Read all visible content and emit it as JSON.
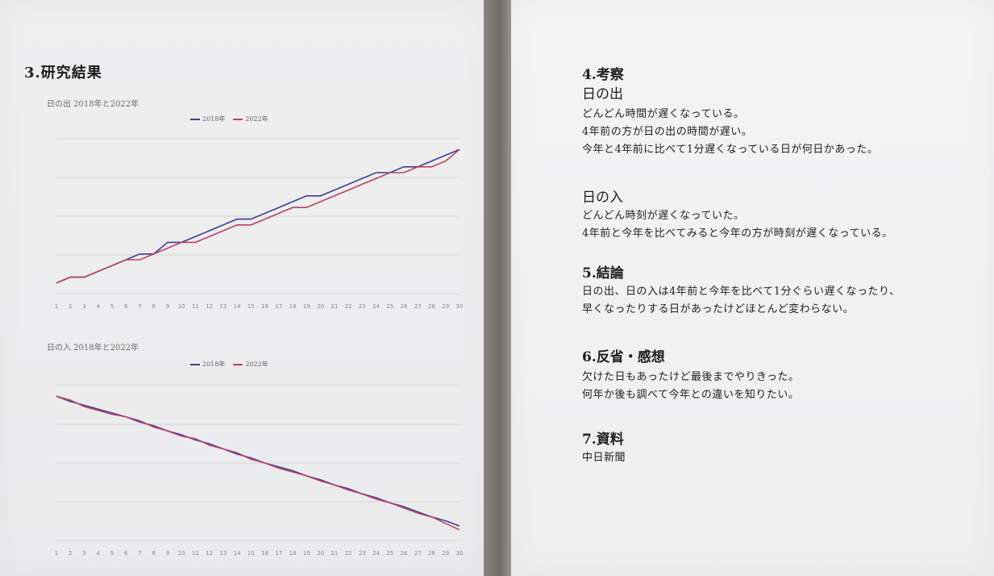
{
  "left": {
    "heading": "3.研究結果",
    "chart1": {
      "title": "日の出 2018年と2022年",
      "legend": [
        "2018年",
        "2022年"
      ]
    },
    "chart2": {
      "title": "日の入 2018年と2022年",
      "legend": [
        "2018年",
        "2022年"
      ]
    }
  },
  "right": {
    "sections": [
      {
        "heading": "4.考察",
        "subheading": "日の出",
        "lines": [
          "どんどん時間が遅くなっている。",
          "4年前の方が日の出の時間が遅い。",
          "今年と4年前に比べて1分遅くなっている日が何日かあった。"
        ]
      },
      {
        "subheading": "日の入",
        "lines": [
          "どんどん時刻が遅くなっていた。",
          "4年前と今年を比べてみると今年の方が時刻が遅くなっている。"
        ]
      },
      {
        "heading": "5.結論",
        "lines": [
          "日の出、日の入は4年前と今年を比べて1分ぐらい遅くなったり、",
          "早くなったりする日があったけどほとんど変わらない。"
        ]
      },
      {
        "heading": "6.反省・感想",
        "lines": [
          "欠けた日もあったけど最後までやりきった。",
          "何年か後も調べて今年との違いを知りたい。"
        ]
      },
      {
        "heading": "7.資料",
        "lines": [
          "中日新聞"
        ]
      }
    ]
  },
  "chart_data": [
    {
      "type": "line",
      "title": "日の出 2018年と2022年",
      "x": [
        1,
        2,
        3,
        4,
        5,
        6,
        7,
        8,
        9,
        10,
        11,
        12,
        13,
        14,
        15,
        16,
        17,
        18,
        19,
        20,
        21,
        22,
        23,
        24,
        25,
        26,
        27,
        28,
        29,
        30
      ],
      "series": [
        {
          "name": "2018年",
          "color": "#3b3f9a",
          "values": [
            50.5,
            51,
            51,
            51.5,
            52,
            52.5,
            53,
            53,
            54,
            54,
            54.5,
            55,
            55.5,
            56,
            56,
            56.5,
            57,
            57.5,
            58,
            58,
            58.5,
            59,
            59.5,
            60,
            60,
            60.5,
            60.5,
            61,
            61.5,
            62
          ]
        },
        {
          "name": "2022年",
          "color": "#c04060",
          "values": [
            50.5,
            51,
            51,
            51.5,
            52,
            52.5,
            52.5,
            53,
            53.5,
            54,
            54,
            54.5,
            55,
            55.5,
            55.5,
            56,
            56.5,
            57,
            57,
            57.5,
            58,
            58.5,
            59,
            59.5,
            60,
            60,
            60.5,
            60.5,
            61,
            62
          ]
        }
      ],
      "grid": true,
      "legend": "top"
    },
    {
      "type": "line",
      "title": "日の入 2018年と2022年",
      "x": [
        1,
        2,
        3,
        4,
        5,
        6,
        7,
        8,
        9,
        10,
        11,
        12,
        13,
        14,
        15,
        16,
        17,
        18,
        19,
        20,
        21,
        22,
        23,
        24,
        25,
        26,
        27,
        28,
        29,
        30
      ],
      "series": [
        {
          "name": "2018年",
          "color": "#3b3f9a",
          "values": [
            30,
            29.6,
            29.3,
            29,
            28.7,
            28.4,
            28,
            27.7,
            27.3,
            27,
            26.6,
            26.3,
            25.9,
            25.5,
            25.2,
            24.8,
            24.5,
            24.2,
            23.8,
            23.5,
            23.1,
            22.8,
            22.4,
            22.1,
            21.7,
            21.4,
            21,
            20.6,
            20.3,
            19.9
          ]
        },
        {
          "name": "2022年",
          "color": "#c04060",
          "values": [
            30,
            29.7,
            29.2,
            28.9,
            28.6,
            28.4,
            28.1,
            27.6,
            27.3,
            26.9,
            26.7,
            26.2,
            25.9,
            25.6,
            25.1,
            24.8,
            24.4,
            24.1,
            23.8,
            23.4,
            23.1,
            22.7,
            22.4,
            22,
            21.7,
            21.3,
            20.9,
            20.6,
            20.1,
            19.6
          ]
        }
      ],
      "grid": true,
      "legend": "top"
    }
  ]
}
